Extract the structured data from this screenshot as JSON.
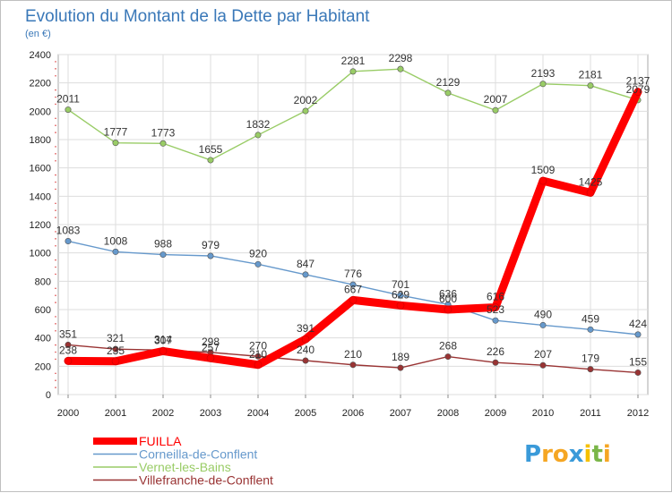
{
  "chart_data": {
    "type": "line",
    "title": "Evolution du Montant de la Dette par Habitant",
    "subtitle": "(en €)",
    "xlabel": "",
    "ylabel": "",
    "x": [
      "2000",
      "2001",
      "2002",
      "2003",
      "2004",
      "2005",
      "2006",
      "2007",
      "2008",
      "2009",
      "2010",
      "2011",
      "2012"
    ],
    "ylim": [
      0,
      2400
    ],
    "yticks": [
      0,
      200,
      400,
      600,
      800,
      1000,
      1200,
      1400,
      1600,
      1800,
      2000,
      2200,
      2400
    ],
    "grid": true,
    "legend_position": "bottom-left",
    "series": [
      {
        "name": "FUILLA",
        "color": "#ff0000",
        "values": [
          238,
          235,
          307,
          257,
          210,
          391,
          667,
          629,
          600,
          616,
          1509,
          1425,
          2137
        ]
      },
      {
        "name": "Corneilla-de-Conflent",
        "color": "#6699cc",
        "values": [
          1083,
          1008,
          988,
          979,
          920,
          847,
          776,
          701,
          636,
          523,
          490,
          459,
          424
        ]
      },
      {
        "name": "Vernet-les-Bains",
        "color": "#99cc66",
        "values": [
          2011,
          1777,
          1773,
          1655,
          1832,
          2002,
          2281,
          2298,
          2129,
          2007,
          2193,
          2181,
          2079
        ]
      },
      {
        "name": "Villefranche-de-Conflent",
        "color": "#993333",
        "values": [
          351,
          321,
          314,
          298,
          270,
          240,
          210,
          189,
          268,
          226,
          207,
          179,
          155
        ]
      }
    ]
  },
  "logo": {
    "letters": [
      "P",
      "r",
      "o",
      "x",
      "i",
      "t",
      "i"
    ],
    "colors": [
      "#3a9ad9",
      "#f5a623",
      "#f5a623",
      "#3a9ad9",
      "#f5c000",
      "#7ab648",
      "#f5a623"
    ]
  }
}
